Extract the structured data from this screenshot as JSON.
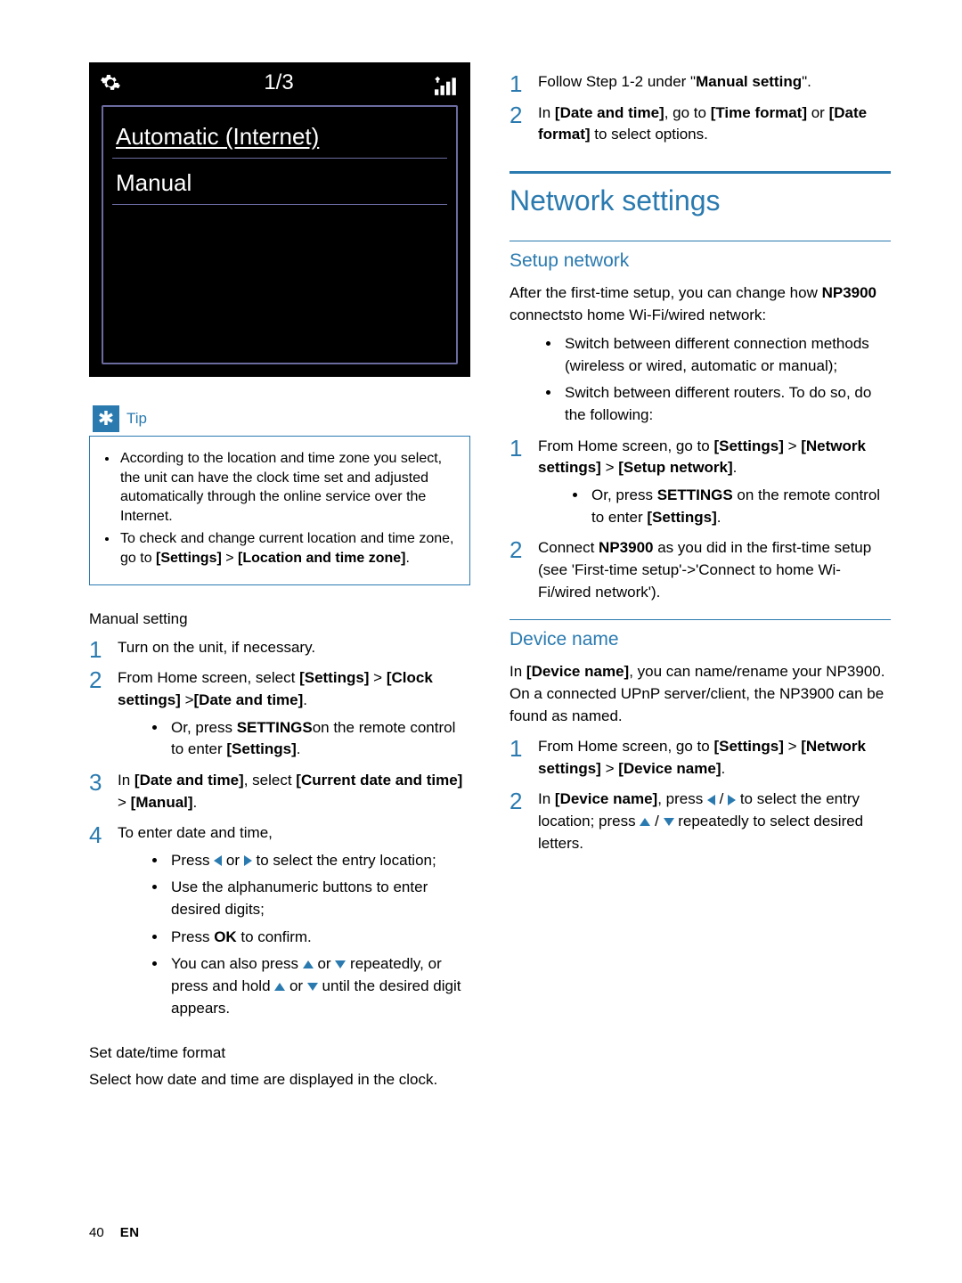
{
  "device": {
    "counter": "1/3",
    "items": [
      "Automatic (Internet)",
      "Manual"
    ],
    "selected_index": 0,
    "bg": "#000000",
    "fg": "#ffffff",
    "border": "#6b6ba0"
  },
  "tip": {
    "label": "Tip",
    "items": [
      "According to the location and time zone you select, the unit can have the clock time set and adjusted automatically through the online service over the Internet.",
      "To check and change current location and time zone, go to <b>[Settings]</b> > <b>[Location and time zone]</b>."
    ]
  },
  "left": {
    "manual_setting_h": "Manual setting",
    "steps_a": [
      "Turn on the unit, if necessary.",
      "From Home screen, select <b>[Settings]</b> > <b>[Clock settings]</b> ><b>[Date and time]</b>.",
      "In <b>[Date and time]</b>, select <b>[Current date and time]</b> > <b>[Manual]</b>.",
      "To enter date and time,"
    ],
    "sub_after_2": "Or, press <b>SETTINGS</b>on the remote control to enter <b>[Settings]</b>.",
    "sub_after_4": [
      "Press {L} or {R} to select the entry location;",
      "Use the alphanumeric buttons to enter desired digits;",
      "Press <b>OK</b> to confirm.",
      "You can also press {U} or {D} repeatedly, or press and hold {U} or {D} until the desired digit appears."
    ],
    "set_fmt_h": "Set date/time format",
    "set_fmt_p": "Select how date and time are displayed in the clock."
  },
  "right": {
    "top_steps": [
      "Follow Step 1-2 under \"<b>Manual setting</b>\".",
      "In <b>[Date and time]</b>, go to <b>[Time format]</b> or <b>[Date format]</b> to select options."
    ],
    "network_h": "Network settings",
    "setup_h": "Setup network",
    "setup_p": "After the first-time setup, you can change how <b>NP3900</b> connectsto home Wi-Fi/wired network:",
    "setup_bullets": [
      "Switch between different connection methods (wireless or wired, automatic or manual);",
      "Switch between different routers. To do so, do the following:"
    ],
    "setup_steps": [
      "From Home screen, go to <b>[Settings]</b> > <b>[Network settings]</b> > <b>[Setup network]</b>.",
      "Connect <b>NP3900</b> as you did in the first-time setup (see 'First-time setup'->'Connect to home Wi-Fi/wired network')."
    ],
    "setup_step1_sub": "Or, press <b>SETTINGS</b> on the remote control to enter <b>[Settings]</b>.",
    "devname_h": "Device name",
    "devname_p": "In <b>[Device name]</b>, you can name/rename your NP3900. On a connected UPnP server/client, the NP3900 can be found as named.",
    "devname_steps": [
      "From Home screen, go to <b>[Settings]</b> > <b>[Network settings]</b> > <b>[Device name]</b>.",
      "In <b>[Device name]</b>, press {L} / {R} to select the entry location; press {U} / {D} repeatedly to select desired letters."
    ]
  },
  "footer": {
    "page": "40",
    "lang": "EN"
  },
  "colors": {
    "accent": "#2a7ab0"
  }
}
